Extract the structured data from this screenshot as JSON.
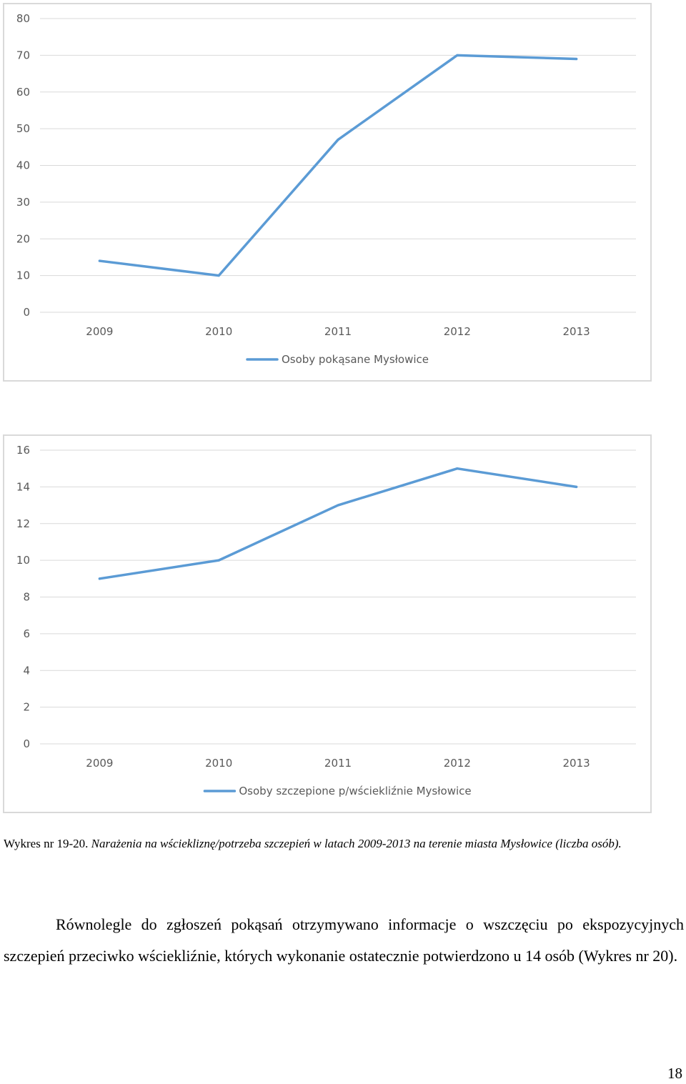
{
  "chart_data": [
    {
      "type": "line",
      "categories": [
        "2009",
        "2010",
        "2011",
        "2012",
        "2013"
      ],
      "series": [
        {
          "name": "Osoby pokąsane Mysłowice",
          "values": [
            14,
            10,
            47,
            70,
            69
          ]
        }
      ],
      "yticks": [
        0,
        10,
        20,
        30,
        40,
        50,
        60,
        70,
        80
      ],
      "ylim": [
        0,
        80
      ],
      "title": "",
      "xlabel": "",
      "ylabel": "",
      "legend": "bottom",
      "grid": true,
      "series_color": "#5b9bd5"
    },
    {
      "type": "line",
      "categories": [
        "2009",
        "2010",
        "2011",
        "2012",
        "2013"
      ],
      "series": [
        {
          "name": "Osoby szczepione p/wściekliźnie Mysłowice",
          "values": [
            9,
            10,
            13,
            15,
            14
          ]
        }
      ],
      "yticks": [
        0,
        2,
        4,
        6,
        8,
        10,
        12,
        14,
        16
      ],
      "ylim": [
        0,
        16
      ],
      "title": "",
      "xlabel": "",
      "ylabel": "",
      "legend": "bottom",
      "grid": true,
      "series_color": "#5b9bd5"
    }
  ],
  "caption": {
    "prefix": "Wykres nr 19-20.",
    "title": "Narażenia na wściekliznę/potrzeba szczepień w latach 2009-2013 na terenie miasta Mysłowice (liczba osób)."
  },
  "paragraph": "Równolegle do zgłoszeń pokąsań otrzymywano informacje o wszczęciu po ekspozycyjnych szczepień przeciwko wściekliźnie, których wykonanie ostatecznie potwierdzono u 14 osób (Wykres nr 20).",
  "page_number": "18"
}
